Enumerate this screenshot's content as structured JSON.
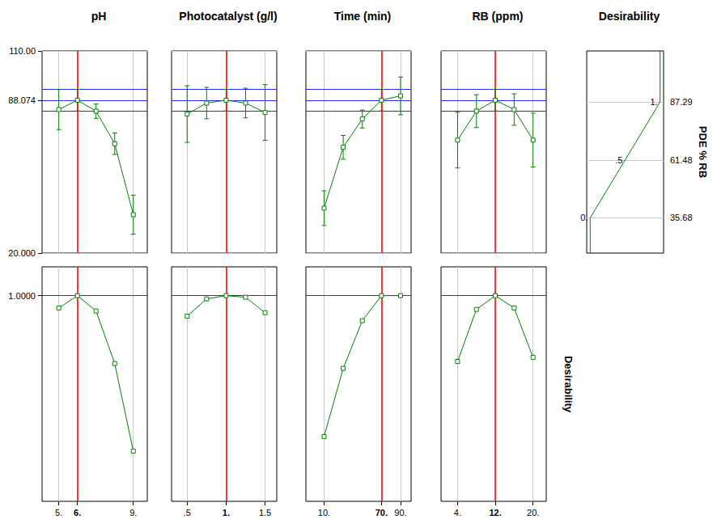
{
  "chart_data": {
    "type": "line",
    "color": "#008000",
    "marker": "square",
    "grid": true,
    "prediction": 88.074,
    "prediction_ci": [
      83.2,
      92.9
    ],
    "ylim": [
      20,
      110
    ],
    "yticks": [
      {
        "value": 20,
        "label": "20.000"
      },
      {
        "value": 88.074,
        "label": "88.074"
      },
      {
        "value": 110,
        "label": "110.00"
      }
    ],
    "desirability_label": "Desirability",
    "desirability_ylim": [
      0,
      1.14
    ],
    "desirability_yticks": [
      {
        "value": 1,
        "label": "1.0000"
      }
    ],
    "factors": [
      {
        "title": "pH",
        "x": [
          5,
          6,
          7,
          8,
          9
        ],
        "values": [
          83.9,
          88.074,
          83.2,
          68.7,
          37.1
        ],
        "errors": [
          8.9,
          4.8,
          3.2,
          4.8,
          8.7
        ],
        "desirability": [
          0.94,
          1.0,
          0.925,
          0.67,
          0.244
        ],
        "xlim": [
          4.1,
          9.75
        ],
        "xticks": [
          {
            "value": 5,
            "label": "5."
          },
          {
            "value": 6,
            "label": "6."
          },
          {
            "value": 9,
            "label": "9."
          }
        ],
        "current": 6
      },
      {
        "title": "Photocatalyst (g/l)",
        "x": [
          0.5,
          0.75,
          1,
          1.25,
          1.5
        ],
        "values": [
          81.9,
          86.8,
          88.074,
          86.8,
          82.6
        ],
        "errors": [
          12.6,
          7.0,
          4.8,
          6.6,
          12.4
        ],
        "desirability": [
          0.9,
          0.984,
          1.0,
          0.992,
          0.917
        ],
        "xlim": [
          0.3,
          1.65
        ],
        "xticks": [
          {
            "value": 0.5,
            "label": ".5"
          },
          {
            "value": 1,
            "label": "1."
          },
          1.5
        ],
        "current": 1
      },
      {
        "title": "Time (min)",
        "x": [
          10,
          30,
          50,
          70,
          90
        ],
        "values": [
          40.0,
          67.1,
          79.7,
          88.074,
          90.0
        ],
        "errors": [
          7.7,
          5.3,
          4.0,
          4.8,
          8.4
        ],
        "desirability": [
          0.315,
          0.646,
          0.878,
          1.0,
          1.0
        ],
        "xlim": [
          -9,
          101
        ],
        "xticks": [
          {
            "value": 10,
            "label": "10."
          },
          {
            "value": 70,
            "label": "70."
          },
          {
            "value": 90,
            "label": "90."
          }
        ],
        "current": 70
      },
      {
        "title": "RB (ppm)",
        "x": [
          4,
          8,
          12,
          16,
          20
        ],
        "values": [
          70.3,
          83.2,
          88.074,
          83.9,
          70.3
        ],
        "errors": [
          12.4,
          7.3,
          4.8,
          7.0,
          12.0
        ],
        "desirability": [
          0.68,
          0.933,
          1.0,
          0.94,
          0.7
        ],
        "xlim": [
          0.5,
          22.8
        ],
        "xticks": [
          {
            "value": 4,
            "label": "4."
          },
          {
            "value": 12,
            "label": "12."
          },
          {
            "value": 20,
            "label": "20."
          }
        ],
        "current": 12
      }
    ],
    "desirability_function": {
      "title": "Desirability",
      "y_label": "PDE % RB",
      "x": [
        0,
        0,
        0.5,
        1,
        1
      ],
      "values": [
        20,
        35.68,
        61.48,
        87.29,
        110
      ],
      "value_labels": [
        null,
        "0.",
        ".5",
        "1.",
        null
      ],
      "xlim": [
        -0.05,
        1.05
      ],
      "yticks": [
        35.68,
        61.48,
        87.29
      ]
    }
  }
}
